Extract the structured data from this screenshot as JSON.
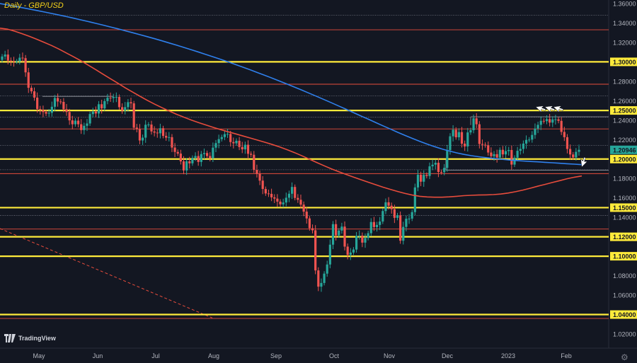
{
  "chart": {
    "title": "Daily - GBP/USD",
    "brand": "TradingView",
    "colors": {
      "background": "#131722",
      "up": "#26a69a",
      "down": "#ef5350",
      "ma_fast": "#e74c3c",
      "ma_slow": "#2f80ed",
      "level": "#ffeb3b",
      "grid_text": "#b2b5be"
    }
  },
  "chart_data": {
    "type": "line",
    "ylim": [
      1.0,
      1.368
    ],
    "price_axis_ticks": [
      "1.36000",
      "1.34000",
      "1.32000",
      "1.30000",
      "1.28000",
      "1.26000",
      "1.25000",
      "1.24000",
      "1.22000",
      "1.20946",
      "1.20000",
      "1.18000",
      "1.16000",
      "1.15000",
      "1.14000",
      "1.12000",
      "1.10000",
      "1.08000",
      "1.06000",
      "1.04000",
      "1.02000"
    ],
    "highlighted_ticks": [
      "1.30000",
      "1.25000",
      "1.20000",
      "1.15000",
      "1.12000",
      "1.10000",
      "1.04000"
    ],
    "current_price": "1.20946",
    "time_axis_labels": [
      "May",
      "Jun",
      "Jul",
      "Aug",
      "Sep",
      "Oct",
      "Nov",
      "Dec",
      "2023",
      "Feb"
    ],
    "horizontal_levels_yellow": [
      1.3,
      1.25,
      1.2,
      1.15,
      1.12,
      1.1,
      1.04
    ],
    "horizontal_levels_red": [
      1.333,
      1.277,
      1.231,
      1.185,
      1.128,
      1.036
    ],
    "dotted_levels": [
      1.348,
      1.265,
      1.243,
      1.214,
      1.142,
      1.189
    ],
    "series": [
      {
        "values": [
          1.3055,
          1.3075,
          1.3013,
          1.3006,
          1.3004,
          1.3005,
          1.3043,
          1.3038,
          1.2892,
          1.2733,
          1.2697,
          1.2632,
          1.2515,
          1.2504,
          1.2484,
          1.2468,
          1.2476,
          1.2538,
          1.2628,
          1.2592,
          1.2588,
          1.2513,
          1.2484,
          1.2398,
          1.2358,
          1.2395,
          1.2358,
          1.2298,
          1.2342,
          1.2366,
          1.2463,
          1.2488,
          1.2469,
          1.2564,
          1.2521,
          1.2596,
          1.2631,
          1.2627,
          1.2639,
          1.2639,
          1.2534,
          1.2498,
          1.2534,
          1.2585,
          1.2573,
          1.2323,
          1.2307,
          1.2191,
          1.222,
          1.2353,
          1.2355,
          1.2284,
          1.2272,
          1.2265,
          1.2317,
          1.2238,
          1.222,
          1.2225,
          1.2118,
          1.2073,
          1.2056,
          1.1976,
          1.1883,
          1.1977,
          1.1956,
          1.2012,
          1.2031,
          1.197,
          1.2051,
          1.2062,
          1.2031,
          1.2008,
          1.2117,
          1.2164,
          1.2205,
          1.2226,
          1.2256,
          1.2258,
          1.2175,
          1.2162,
          1.2188,
          1.2124,
          1.21,
          1.2147,
          1.2054,
          1.2044,
          1.1889,
          1.1849,
          1.1778,
          1.1692,
          1.1646,
          1.1642,
          1.1606,
          1.1593,
          1.1562,
          1.1534,
          1.1553,
          1.1602,
          1.1643,
          1.1713,
          1.16,
          1.1581,
          1.1531,
          1.1459,
          1.1389,
          1.1288,
          1.1267,
          1.0854,
          1.0687,
          1.0725,
          1.0821,
          1.0915,
          1.1119,
          1.133,
          1.1215,
          1.1264,
          1.1305,
          1.1099,
          1.1014,
          1.1038,
          1.1069,
          1.121,
          1.1212,
          1.114,
          1.1188,
          1.1237,
          1.1352,
          1.13,
          1.1322,
          1.1357,
          1.1465,
          1.1555,
          1.152,
          1.1484,
          1.1395,
          1.1421,
          1.116,
          1.1302,
          1.1386,
          1.1387,
          1.1454,
          1.1708,
          1.1838,
          1.1767,
          1.1837,
          1.1826,
          1.1925,
          1.1942,
          1.1962,
          1.1867,
          1.1865,
          1.1909,
          1.2092,
          1.2234,
          1.2302,
          1.2224,
          1.2277,
          1.2158,
          1.213,
          1.2274,
          1.2297,
          1.2419,
          1.2358,
          1.2155,
          1.2147,
          1.2142,
          1.2067,
          1.2029,
          1.205,
          1.2016,
          1.2095,
          1.2048,
          1.2082,
          1.2093,
          1.1943,
          1.2014,
          1.2085,
          1.2104,
          1.2159,
          1.2197,
          1.22,
          1.2248,
          1.2313,
          1.2352,
          1.2393,
          1.239,
          1.2411,
          1.2375,
          1.2408,
          1.2409,
          1.2393,
          1.2279,
          1.2225,
          1.2104,
          1.2047,
          1.2017,
          1.2074,
          1.2095
        ]
      },
      {
        "name": "",
        "values": [
          1.3347,
          1.3337,
          1.3315,
          1.329,
          1.3262,
          1.3232,
          1.32,
          1.3168,
          1.3132,
          1.3092,
          1.3052,
          1.301,
          1.2965,
          1.292,
          1.2873,
          1.2826,
          1.278,
          1.2733,
          1.2689,
          1.2646,
          1.2604,
          1.2565,
          1.2528,
          1.2493,
          1.246,
          1.243,
          1.2401,
          1.2374,
          1.2349,
          1.2325,
          1.2302,
          1.228,
          1.2259,
          1.2237,
          1.2216,
          1.2194,
          1.2172,
          1.2149,
          1.2124,
          1.2096,
          1.2066,
          1.2033,
          1.1999,
          1.1965,
          1.1931,
          1.1899,
          1.187,
          1.1842,
          1.1815,
          1.1788,
          1.1762,
          1.1736,
          1.1711,
          1.1688,
          1.1666,
          1.1646,
          1.1629,
          1.1617,
          1.161,
          1.1607,
          1.1607,
          1.1611,
          1.1617,
          1.1623,
          1.1627,
          1.163,
          1.1631,
          1.1634,
          1.164,
          1.165,
          1.1664,
          1.1681,
          1.17,
          1.172,
          1.1739,
          1.1759,
          1.1778,
          1.1797,
          1.1813,
          1.1826
        ]
      },
      {
        "name": "",
        "values": [
          1.36,
          1.3586,
          1.3572,
          1.3558,
          1.3543,
          1.3529,
          1.3513,
          1.3498,
          1.3482,
          1.3466,
          1.3449,
          1.3432,
          1.3414,
          1.3396,
          1.3378,
          1.3359,
          1.334,
          1.332,
          1.33,
          1.328,
          1.3259,
          1.3238,
          1.3216,
          1.3194,
          1.3171,
          1.3148,
          1.3124,
          1.31,
          1.3075,
          1.305,
          1.3025,
          1.2999,
          1.2972,
          1.2945,
          1.2917,
          1.2889,
          1.286,
          1.2831,
          1.2801,
          1.2771,
          1.274,
          1.2709,
          1.2677,
          1.2645,
          1.2612,
          1.2579,
          1.2546,
          1.2512,
          1.2478,
          1.2444,
          1.241,
          1.2376,
          1.2342,
          1.2309,
          1.2275,
          1.2243,
          1.2212,
          1.2182,
          1.2154,
          1.2128,
          1.2104,
          1.2083,
          1.2064,
          1.2048,
          1.2035,
          1.2024,
          1.2014,
          1.2006,
          1.1998,
          1.1991,
          1.1985,
          1.198,
          1.1975,
          1.1971,
          1.1966,
          1.1962,
          1.1957,
          1.1952,
          1.1947,
          1.1942
        ]
      }
    ]
  }
}
